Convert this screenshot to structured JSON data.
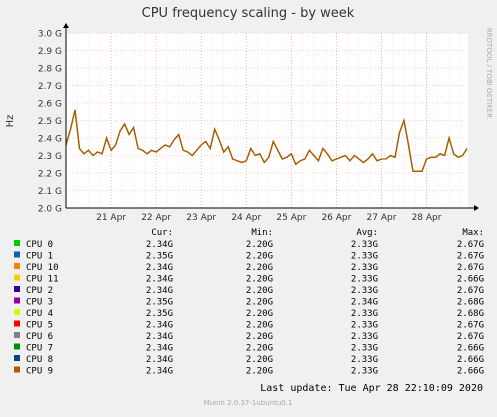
{
  "chart_data": {
    "type": "line",
    "title": "CPU frequency scaling - by week",
    "ylabel": "Hz",
    "side_label": "RRDTOOL / TOBI OETIKER",
    "ylim": [
      2.0,
      3.0
    ],
    "yticks": [
      2.0,
      2.1,
      2.2,
      2.3,
      2.4,
      2.5,
      2.6,
      2.7,
      2.8,
      2.9,
      3.0
    ],
    "ytick_labels": [
      "2.0 G",
      "2.1 G",
      "2.2 G",
      "2.3 G",
      "2.4 G",
      "2.5 G",
      "2.6 G",
      "2.7 G",
      "2.8 G",
      "2.9 G",
      "3.0 G"
    ],
    "xlim_days": [
      20.0,
      28.92
    ],
    "xticks_days": [
      21.0,
      22.0,
      23.0,
      24.0,
      25.0,
      26.0,
      27.0,
      28.0
    ],
    "xtick_labels": [
      "21 Apr",
      "22 Apr",
      "23 Apr",
      "24 Apr",
      "25 Apr",
      "26 Apr",
      "27 Apr",
      "28 Apr"
    ],
    "grid": true,
    "legend_headers": {
      "cur": "Cur:",
      "min": "Min:",
      "avg": "Avg:",
      "max": "Max:"
    },
    "series": [
      {
        "name": "CPU 0",
        "color": "#00cc00",
        "cur": "2.34G",
        "min": "2.20G",
        "avg": "2.33G",
        "max": "2.67G"
      },
      {
        "name": "CPU 1",
        "color": "#0066b3",
        "cur": "2.35G",
        "min": "2.20G",
        "avg": "2.33G",
        "max": "2.67G"
      },
      {
        "name": "CPU 10",
        "color": "#ff8000",
        "cur": "2.34G",
        "min": "2.20G",
        "avg": "2.33G",
        "max": "2.67G"
      },
      {
        "name": "CPU 11",
        "color": "#ffcc00",
        "cur": "2.34G",
        "min": "2.20G",
        "avg": "2.33G",
        "max": "2.66G"
      },
      {
        "name": "CPU 2",
        "color": "#330099",
        "cur": "2.34G",
        "min": "2.20G",
        "avg": "2.33G",
        "max": "2.67G"
      },
      {
        "name": "CPU 3",
        "color": "#990099",
        "cur": "2.35G",
        "min": "2.20G",
        "avg": "2.34G",
        "max": "2.68G"
      },
      {
        "name": "CPU 4",
        "color": "#ccff00",
        "cur": "2.35G",
        "min": "2.20G",
        "avg": "2.33G",
        "max": "2.68G"
      },
      {
        "name": "CPU 5",
        "color": "#ff0000",
        "cur": "2.34G",
        "min": "2.20G",
        "avg": "2.33G",
        "max": "2.67G"
      },
      {
        "name": "CPU 6",
        "color": "#808080",
        "cur": "2.34G",
        "min": "2.20G",
        "avg": "2.33G",
        "max": "2.67G"
      },
      {
        "name": "CPU 7",
        "color": "#008f00",
        "cur": "2.34G",
        "min": "2.20G",
        "avg": "2.33G",
        "max": "2.66G"
      },
      {
        "name": "CPU 8",
        "color": "#00487d",
        "cur": "2.34G",
        "min": "2.20G",
        "avg": "2.33G",
        "max": "2.66G"
      },
      {
        "name": "CPU 9",
        "color": "#b35a00",
        "cur": "2.34G",
        "min": "2.20G",
        "avg": "2.33G",
        "max": "2.66G"
      }
    ],
    "trace": {
      "x_days": [
        20.0,
        20.1,
        20.2,
        20.3,
        20.4,
        20.5,
        20.6,
        20.7,
        20.8,
        20.9,
        21.0,
        21.1,
        21.2,
        21.3,
        21.4,
        21.5,
        21.6,
        21.7,
        21.8,
        21.9,
        22.0,
        22.1,
        22.2,
        22.3,
        22.4,
        22.5,
        22.6,
        22.7,
        22.8,
        22.9,
        23.0,
        23.1,
        23.2,
        23.3,
        23.4,
        23.5,
        23.6,
        23.7,
        23.8,
        23.9,
        24.0,
        24.1,
        24.2,
        24.3,
        24.4,
        24.5,
        24.6,
        24.7,
        24.8,
        24.9,
        25.0,
        25.1,
        25.2,
        25.3,
        25.4,
        25.5,
        25.6,
        25.7,
        25.8,
        25.9,
        26.0,
        26.1,
        26.2,
        26.3,
        26.4,
        26.5,
        26.6,
        26.7,
        26.8,
        26.9,
        27.0,
        27.1,
        27.2,
        27.3,
        27.4,
        27.5,
        27.6,
        27.7,
        27.8,
        27.9,
        28.0,
        28.1,
        28.2,
        28.3,
        28.4,
        28.5,
        28.6,
        28.7,
        28.8,
        28.9
      ],
      "y": [
        2.36,
        2.45,
        2.56,
        2.34,
        2.31,
        2.33,
        2.3,
        2.32,
        2.31,
        2.4,
        2.33,
        2.36,
        2.44,
        2.48,
        2.42,
        2.46,
        2.34,
        2.33,
        2.31,
        2.33,
        2.32,
        2.34,
        2.36,
        2.35,
        2.39,
        2.42,
        2.33,
        2.32,
        2.3,
        2.33,
        2.36,
        2.38,
        2.34,
        2.45,
        2.39,
        2.32,
        2.35,
        2.28,
        2.27,
        2.26,
        2.27,
        2.34,
        2.3,
        2.31,
        2.26,
        2.29,
        2.38,
        2.33,
        2.28,
        2.29,
        2.31,
        2.25,
        2.27,
        2.28,
        2.33,
        2.3,
        2.27,
        2.34,
        2.31,
        2.27,
        2.28,
        2.29,
        2.3,
        2.27,
        2.3,
        2.28,
        2.26,
        2.28,
        2.31,
        2.27,
        2.28,
        2.28,
        2.3,
        2.29,
        2.43,
        2.5,
        2.36,
        2.21,
        2.21,
        2.21,
        2.28,
        2.29,
        2.29,
        2.31,
        2.3,
        2.4,
        2.31,
        2.29,
        2.3,
        2.34
      ]
    }
  },
  "footer": {
    "last_update": "Last update: Tue Apr 28 22:10:09 2020",
    "version": "Munin 2.0.37-1ubuntu0.1"
  },
  "colors": {
    "background": "#f0f0f0",
    "plot_background": "#ffffff",
    "grid": "#ff9a9a",
    "trace": "#b35a00"
  }
}
